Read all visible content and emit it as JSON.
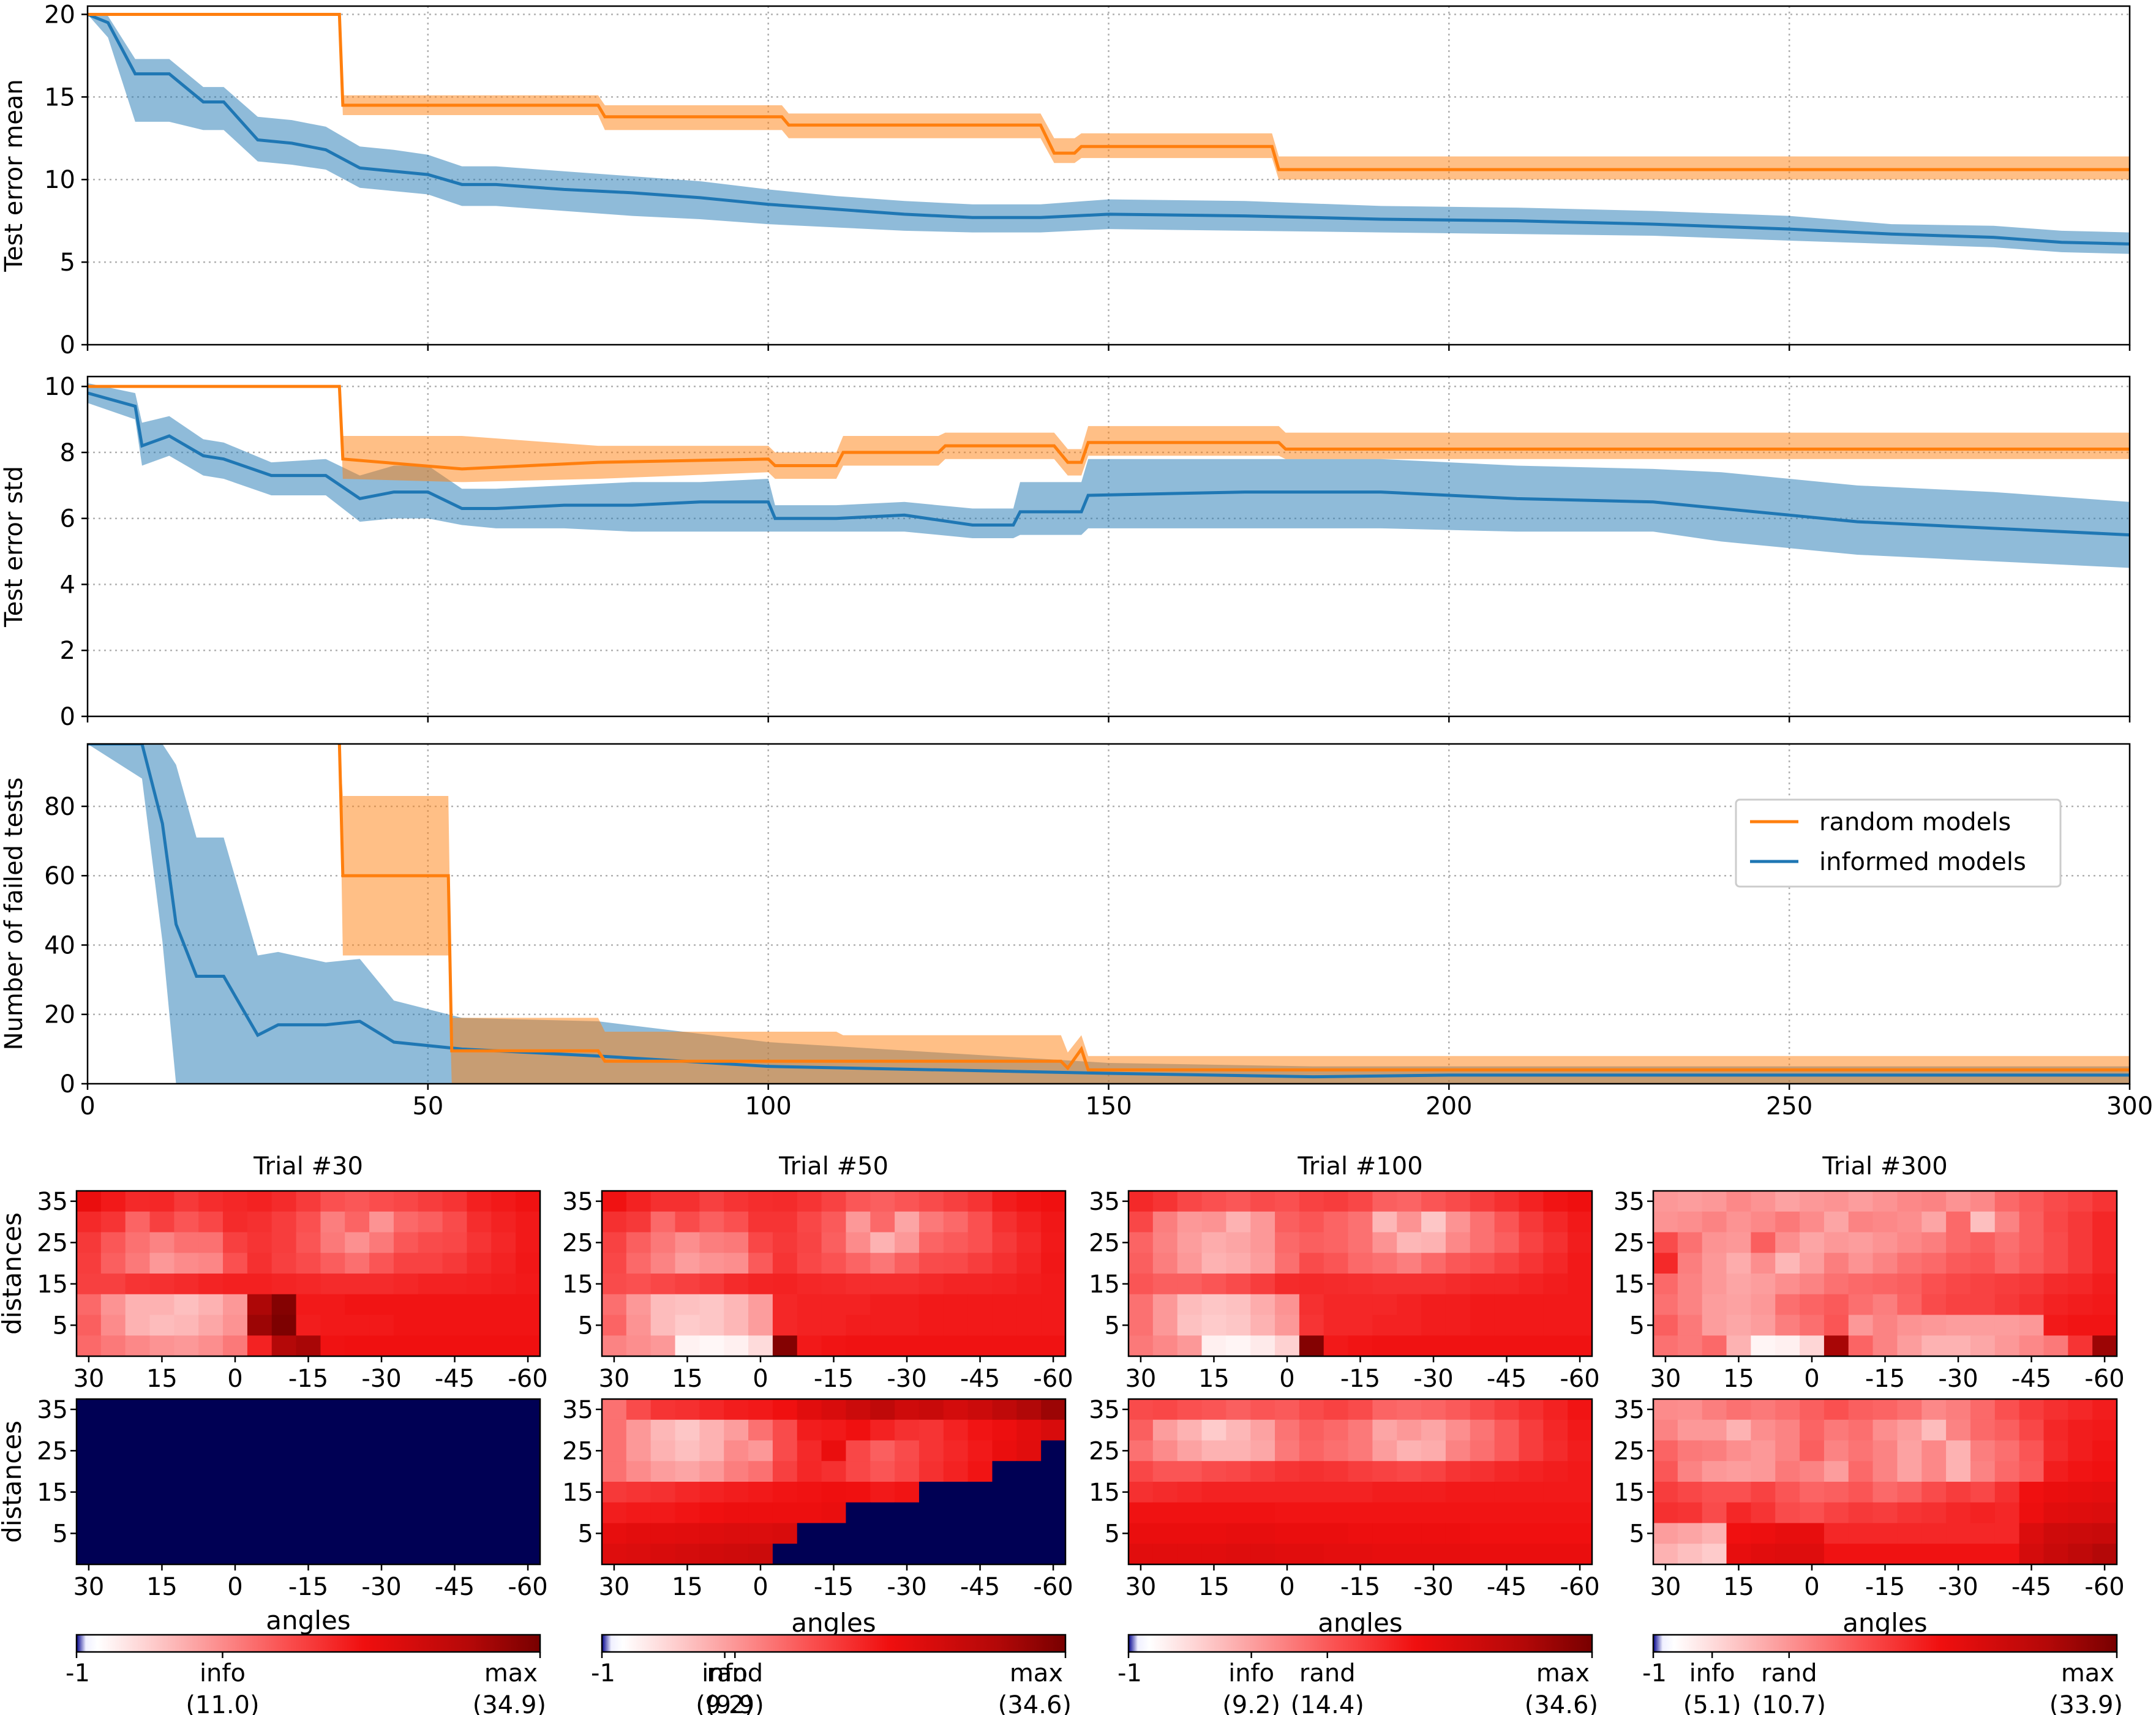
{
  "colors": {
    "random": "#ff7f0e",
    "informed": "#1f77b4",
    "navy": "#000054"
  },
  "chart_data": [
    {
      "type": "line",
      "ylabel": "Test error mean",
      "xlim": [
        0,
        300
      ],
      "ylim": [
        0,
        20.5
      ],
      "yticks": [
        0,
        5,
        10,
        15,
        20
      ],
      "grid": true,
      "series": [
        {
          "name": "random models",
          "color": "#ff7f0e",
          "x": [
            0,
            37,
            37.5,
            75,
            76,
            102,
            103,
            140,
            142,
            145,
            146,
            174,
            175,
            300
          ],
          "y": [
            20,
            20,
            14.5,
            14.5,
            13.8,
            13.8,
            13.3,
            13.3,
            11.6,
            11.6,
            12.0,
            12.0,
            10.6,
            10.6
          ],
          "lo": [
            20,
            20,
            13.9,
            13.9,
            13.0,
            13.0,
            12.5,
            12.5,
            11.0,
            11.0,
            11.3,
            11.3,
            10.0,
            10.0
          ],
          "hi": [
            20,
            20,
            15.1,
            15.1,
            14.5,
            14.5,
            14.0,
            14.0,
            12.5,
            12.5,
            12.8,
            12.8,
            11.4,
            11.4
          ]
        },
        {
          "name": "informed models",
          "color": "#1f77b4",
          "x": [
            0,
            3,
            7,
            12,
            17,
            20,
            25,
            30,
            35,
            40,
            45,
            50,
            55,
            60,
            70,
            80,
            90,
            100,
            110,
            120,
            130,
            140,
            150,
            170,
            190,
            210,
            230,
            250,
            265,
            280,
            290,
            300
          ],
          "y": [
            20,
            19.5,
            16.4,
            16.4,
            14.7,
            14.7,
            12.4,
            12.2,
            11.8,
            10.7,
            10.5,
            10.3,
            9.7,
            9.7,
            9.4,
            9.2,
            8.9,
            8.5,
            8.2,
            7.9,
            7.7,
            7.7,
            7.9,
            7.8,
            7.6,
            7.5,
            7.3,
            7.0,
            6.7,
            6.5,
            6.2,
            6.1
          ],
          "lo": [
            20,
            18.6,
            13.5,
            13.5,
            13.0,
            13.0,
            11.1,
            10.9,
            10.6,
            9.5,
            9.3,
            9.1,
            8.4,
            8.4,
            8.1,
            7.8,
            7.6,
            7.3,
            7.1,
            6.9,
            6.8,
            6.8,
            7.0,
            6.9,
            6.8,
            6.7,
            6.6,
            6.3,
            6.1,
            5.9,
            5.6,
            5.5
          ],
          "hi": [
            20,
            19.9,
            17.3,
            17.3,
            15.6,
            15.6,
            13.8,
            13.6,
            13.2,
            12.0,
            11.8,
            11.5,
            10.8,
            10.8,
            10.5,
            10.2,
            9.9,
            9.4,
            9.0,
            8.7,
            8.5,
            8.5,
            8.8,
            8.7,
            8.4,
            8.3,
            8.1,
            7.8,
            7.3,
            7.2,
            6.9,
            6.8
          ]
        }
      ]
    },
    {
      "type": "line",
      "ylabel": "Test error std",
      "xlim": [
        0,
        300
      ],
      "ylim": [
        0,
        10.3
      ],
      "yticks": [
        0,
        2,
        4,
        6,
        8,
        10
      ],
      "grid": true,
      "series": [
        {
          "name": "random models",
          "color": "#ff7f0e",
          "x": [
            0,
            37,
            37.5,
            55,
            75,
            100,
            101,
            110,
            111,
            125,
            126,
            142,
            144,
            146,
            147,
            175,
            176,
            300
          ],
          "y": [
            10,
            10,
            7.8,
            7.5,
            7.7,
            7.8,
            7.6,
            7.6,
            8.0,
            8.0,
            8.2,
            8.2,
            7.7,
            7.7,
            8.3,
            8.3,
            8.1,
            8.1
          ],
          "lo": [
            10,
            10,
            7.2,
            7.1,
            7.2,
            7.4,
            7.2,
            7.2,
            7.6,
            7.6,
            7.8,
            7.8,
            7.3,
            7.3,
            7.9,
            7.9,
            7.8,
            7.8
          ],
          "hi": [
            10,
            10,
            8.5,
            8.5,
            8.2,
            8.2,
            8.0,
            8.0,
            8.5,
            8.5,
            8.6,
            8.6,
            8.1,
            8.1,
            8.8,
            8.8,
            8.6,
            8.6
          ]
        },
        {
          "name": "informed models",
          "color": "#1f77b4",
          "x": [
            0,
            7,
            8,
            12,
            17,
            20,
            27,
            35,
            40,
            45,
            50,
            55,
            60,
            70,
            80,
            90,
            100,
            101,
            110,
            120,
            130,
            136,
            137,
            146,
            147,
            170,
            190,
            210,
            230,
            240,
            250,
            260,
            280,
            300
          ],
          "y": [
            9.8,
            9.4,
            8.2,
            8.5,
            7.9,
            7.8,
            7.3,
            7.3,
            6.6,
            6.8,
            6.8,
            6.3,
            6.3,
            6.4,
            6.4,
            6.5,
            6.5,
            6.0,
            6.0,
            6.1,
            5.8,
            5.8,
            6.2,
            6.2,
            6.7,
            6.8,
            6.8,
            6.6,
            6.5,
            6.3,
            6.1,
            5.9,
            5.7,
            5.5
          ],
          "lo": [
            9.5,
            9.0,
            7.6,
            7.9,
            7.3,
            7.2,
            6.7,
            6.7,
            5.9,
            6.0,
            6.0,
            5.8,
            5.7,
            5.7,
            5.6,
            5.6,
            5.6,
            5.6,
            5.6,
            5.6,
            5.4,
            5.4,
            5.5,
            5.5,
            5.7,
            5.7,
            5.7,
            5.6,
            5.6,
            5.3,
            5.1,
            4.9,
            4.7,
            4.5
          ],
          "hi": [
            10.1,
            9.8,
            8.9,
            9.1,
            8.4,
            8.3,
            7.7,
            7.8,
            7.3,
            7.6,
            7.6,
            6.9,
            6.9,
            7.0,
            7.1,
            7.1,
            7.2,
            6.4,
            6.4,
            6.5,
            6.3,
            6.3,
            7.1,
            7.1,
            7.8,
            7.8,
            7.8,
            7.6,
            7.5,
            7.4,
            7.2,
            7.0,
            6.8,
            6.5
          ]
        }
      ]
    },
    {
      "type": "line",
      "ylabel": "Number of failed tests",
      "xlabel": "",
      "xlim": [
        0,
        300
      ],
      "ylim": [
        0,
        98
      ],
      "yticks": [
        0,
        20,
        40,
        60,
        80
      ],
      "xticks": [
        0,
        50,
        100,
        150,
        200,
        250,
        300
      ],
      "grid": true,
      "legend": "right",
      "series": [
        {
          "name": "random models",
          "color": "#ff7f0e",
          "x": [
            37,
            37.5,
            53,
            53.5,
            75,
            76,
            110,
            111,
            143,
            144,
            146,
            147,
            300
          ],
          "y": [
            98,
            60,
            60,
            9.5,
            9.5,
            6.5,
            6.5,
            6.5,
            6.5,
            4.5,
            10,
            4,
            4
          ],
          "lo": [
            98,
            37,
            37,
            0,
            0,
            0,
            0,
            0,
            0,
            0,
            0,
            0,
            0
          ],
          "hi": [
            98,
            83,
            83,
            19,
            19,
            15,
            15,
            14,
            14,
            9,
            14,
            8,
            8
          ]
        },
        {
          "name": "informed models",
          "color": "#1f77b4",
          "x": [
            0,
            8,
            11,
            13,
            16,
            20,
            25,
            28,
            35,
            40,
            45,
            55,
            75,
            100,
            150,
            180,
            200,
            300
          ],
          "y": [
            98,
            98,
            75,
            46,
            31,
            31,
            14,
            17,
            17,
            18,
            12,
            10,
            8,
            5,
            3,
            2,
            2.5,
            2.5
          ],
          "lo": [
            98,
            88,
            41,
            0,
            0,
            0,
            0,
            0,
            0,
            0,
            0,
            0,
            0,
            0,
            0,
            0,
            0,
            0
          ],
          "hi": [
            98,
            98,
            98,
            92,
            71,
            71,
            37,
            38,
            35,
            36,
            24,
            19,
            18,
            12,
            6,
            5,
            5,
            5
          ]
        }
      ]
    },
    {
      "type": "heatmap",
      "panels": [
        {
          "title": "Trial #30",
          "top": "1.0,0.92,0.85,0.86,0.78,0.83,0.86,0.88,0.84,0.77,0.68,0.65,0.69,0.72,0.76,0.80,0.89,0.92,0.95;0.85,0.80,0.60,0.75,0.66,0.72,0.84,0.82,0.76,0.68,0.50,0.60,0.42,0.58,0.62,0.70,0.83,0.88,0.92;0.78,0.65,0.55,0.48,0.55,0.55,0.75,0.80,0.76,0.66,0.52,0.43,0.52,0.65,0.70,0.72,0.80,0.86,0.92;0.76,0.62,0.52,0.40,0.45,0.47,0.68,0.82,0.75,0.70,0.63,0.56,0.66,0.74,0.74,0.78,0.84,0.88,0.93;0.75,0.75,0.80,0.82,0.84,0.87,0.89,0.89,0.87,0.86,0.84,0.84,0.84,0.86,0.88,0.88,0.89,0.90,0.92;0.58,0.42,0.30,0.30,0.25,0.30,0.40,1.38,1.55,0.92,0.92,0.94,0.94,0.94,0.94,0.94,0.94,0.94,0.94;0.62,0.45,0.30,0.26,0.28,0.34,0.42,1.45,1.58,0.90,0.92,0.92,0.92,0.94,0.94,0.94,0.94,0.94,0.94;0.58,0.52,0.46,0.42,0.40,0.44,0.52,0.88,1.35,1.40,0.95,0.96,0.96,0.96,0.96,0.96,0.96,0.96,0.96",
          "bottom": "navy",
          "cbar": {
            "min": "-1",
            "labels": [
              "info",
              "max"
            ],
            "values": [
              "(11.0)",
              "(34.9)"
            ],
            "positions": [
              0.315,
              1.0
            ]
          }
        },
        {
          "title": "Trial #50",
          "top": "0.95,0.88,0.82,0.82,0.75,0.80,0.83,0.84,0.80,0.74,0.65,0.62,0.66,0.70,0.75,0.80,0.90,0.94,0.96;0.82,0.78,0.58,0.70,0.62,0.68,0.80,0.80,0.72,0.64,0.40,0.58,0.35,0.52,0.58,0.68,0.82,0.88,0.93;0.74,0.62,0.52,0.44,0.50,0.52,0.72,0.78,0.73,0.62,0.45,0.30,0.40,0.60,0.64,0.68,0.78,0.85,0.92;0.72,0.58,0.48,0.38,0.42,0.44,0.64,0.80,0.72,0.67,0.60,0.53,0.62,0.70,0.71,0.76,0.82,0.87,0.93;0.70,0.68,0.72,0.75,0.78,0.84,0.87,0.88,0.86,0.85,0.83,0.83,0.83,0.85,0.87,0.87,0.88,0.90,0.92;0.56,0.40,0.26,0.24,0.22,0.28,0.38,0.86,0.88,0.88,0.88,0.90,0.90,0.92,0.92,0.92,0.92,0.92,0.92;0.60,0.42,0.26,0.20,0.22,0.28,0.38,0.86,0.88,0.88,0.90,0.90,0.90,0.92,0.92,0.92,0.92,0.92,0.92;0.48,0.44,0.40,0.05,0.03,0.06,0.14,1.55,0.92,0.94,0.95,0.95,0.95,0.95,0.95,0.95,0.95,0.95,0.95",
          "bottom": "0.55,0.70,0.80,0.82,0.86,0.90,0.92,0.96,1.06,1.12,1.20,1.28,1.18,1.22,1.15,1.20,1.28,1.36,1.45;0.55,0.40,0.28,0.22,0.30,0.38,0.55,0.70,0.90,0.92,0.96,0.88,0.82,0.80,0.88,0.94,0.98,1.05,1.12;0.55,0.40,0.30,0.25,0.30,0.45,0.40,0.70,0.85,1.00,0.72,0.62,0.70,0.80,0.86,0.92,1.00,1.06,N;0.55,0.45,0.38,0.35,0.40,0.50,0.55,0.75,0.86,0.82,0.72,0.66,0.72,0.82,0.88,0.94,N,N,N;0.78,0.80,0.82,0.86,0.88,0.90,0.92,0.94,0.95,0.97,0.96,0.92,0.94,N,N,N,N,N,N;0.90,0.92,0.92,0.94,0.96,0.98,0.98,0.98,0.98,1.00,N,N,N,N,N,N,N,N,N;1.02,1.05,1.05,1.06,1.08,1.10,1.10,1.12,N,N,N,N,N,N,N,N,N,N,N;1.08,1.10,1.12,1.14,1.16,1.18,1.20,N,N,N,N,N,N,N,N,N,N,N,N",
          "cbar": {
            "min": "-1",
            "labels": [
              "info",
              "rand",
              "max"
            ],
            "values": [
              "(9.2)",
              "(9.9)",
              "(34.6)"
            ],
            "positions": [
              0.265,
              0.287,
              1.0
            ]
          }
        },
        {
          "title": "Trial #100",
          "top": "0.85,0.80,0.72,0.68,0.65,0.70,0.68,0.74,0.76,0.72,0.62,0.60,0.66,0.70,0.76,0.82,0.88,0.94,0.97;0.72,0.50,0.40,0.42,0.30,0.40,0.62,0.66,0.60,0.55,0.28,0.42,0.22,0.42,0.55,0.66,0.78,0.86,0.92;0.60,0.48,0.38,0.32,0.35,0.40,0.58,0.62,0.60,0.55,0.42,0.28,0.30,0.46,0.55,0.62,0.74,0.82,0.90;0.62,0.50,0.40,0.30,0.32,0.38,0.56,0.70,0.66,0.58,0.55,0.50,0.58,0.65,0.68,0.74,0.80,0.86,0.92;0.66,0.62,0.62,0.66,0.70,0.76,0.84,0.85,0.84,0.83,0.82,0.82,0.82,0.84,0.86,0.86,0.88,0.90,0.92;0.55,0.40,0.26,0.22,0.24,0.32,0.42,0.82,0.86,0.86,0.86,0.88,0.90,0.90,0.92,0.92,0.92,0.92,0.92;0.55,0.40,0.24,0.20,0.22,0.30,0.40,0.80,0.86,0.86,0.88,0.88,0.90,0.90,0.92,0.92,0.92,0.92,0.92;0.52,0.46,0.40,0.06,0.04,0.08,0.18,1.55,0.92,0.94,0.95,0.95,0.95,0.95,0.95,0.95,0.95,0.95,0.95",
          "bottom": "0.70,0.72,0.68,0.66,0.62,0.66,0.64,0.70,0.74,0.70,0.60,0.58,0.60,0.64,0.70,0.76,0.82,0.88,0.94;0.62,0.38,0.30,0.20,0.28,0.36,0.54,0.62,0.58,0.52,0.35,0.40,0.35,0.44,0.54,0.64,0.76,0.86,0.92;0.55,0.45,0.36,0.30,0.30,0.34,0.52,0.60,0.56,0.52,0.38,0.30,0.32,0.48,0.56,0.64,0.76,0.84,0.90;0.72,0.66,0.66,0.70,0.72,0.76,0.80,0.82,0.80,0.76,0.74,0.72,0.74,0.80,0.82,0.86,0.88,0.90,0.92;0.82,0.84,0.86,0.88,0.88,0.88,0.88,0.88,0.88,0.88,0.90,0.90,0.90,0.92,0.92,0.92,0.92,0.92,0.92;0.95,0.95,0.95,0.95,0.95,0.95,0.94,0.94,0.94,0.94,0.94,0.94,0.94,0.94,0.94,0.94,0.94,0.94,0.94;1.00,1.00,1.00,1.00,1.02,1.02,1.00,1.00,1.00,0.98,0.98,0.98,0.98,0.98,0.96,0.96,0.96,0.96,0.96;1.06,1.06,1.06,1.06,1.08,1.08,1.06,1.06,1.04,1.04,1.02,1.02,1.02,1.02,1.00,1.00,1.00,1.00,1.00",
          "cbar": {
            "min": "-1",
            "labels": [
              "info",
              "rand",
              "max"
            ],
            "values": [
              "(9.2)",
              "(14.4)",
              "(34.6)"
            ],
            "positions": [
              0.265,
              0.429,
              1.0
            ]
          }
        },
        {
          "title": "Trial #300",
          "top": "0.40,0.38,0.40,0.46,0.42,0.36,0.40,0.42,0.38,0.42,0.46,0.48,0.42,0.46,0.58,0.64,0.70,0.74,0.80;0.42,0.44,0.48,0.42,0.46,0.52,0.45,0.35,0.48,0.46,0.44,0.35,0.58,0.25,0.48,0.62,0.72,0.78,0.86;0.70,0.55,0.42,0.40,0.62,0.44,0.35,0.40,0.38,0.42,0.46,0.50,0.58,0.62,0.56,0.62,0.70,0.78,0.86;0.85,0.50,0.40,0.32,0.44,0.28,0.38,0.50,0.42,0.48,0.55,0.58,0.64,0.66,0.58,0.64,0.70,0.78,0.86;0.58,0.48,0.40,0.35,0.38,0.44,0.48,0.55,0.58,0.60,0.62,0.68,0.72,0.74,0.76,0.78,0.84,0.86,0.90;0.55,0.48,0.38,0.36,0.40,0.56,0.60,0.64,0.56,0.50,0.60,0.70,0.74,0.74,0.78,0.82,0.88,0.90,0.92;0.62,0.52,0.38,0.34,0.38,0.50,0.56,0.66,0.40,0.48,0.42,0.40,0.38,0.38,0.38,0.40,0.92,0.94,0.94;0.55,0.52,0.58,0.30,0.04,0.06,0.16,1.40,0.60,0.48,0.38,0.30,0.30,0.34,0.40,0.46,0.52,0.80,1.45",
          "bottom": "0.45,0.44,0.50,0.55,0.52,0.56,0.62,0.68,0.62,0.60,0.56,0.46,0.50,0.58,0.68,0.76,0.82,0.86,0.90;0.48,0.40,0.40,0.30,0.44,0.48,0.60,0.52,0.56,0.44,0.38,0.26,0.48,0.58,0.62,0.72,0.86,0.90,0.92;0.60,0.52,0.50,0.44,0.40,0.48,0.62,0.48,0.54,0.48,0.36,0.46,0.30,0.50,0.56,0.66,0.84,0.90,0.94;0.65,0.48,0.40,0.38,0.40,0.52,0.48,0.38,0.58,0.48,0.36,0.46,0.30,0.48,0.58,0.64,0.90,0.94,0.96;0.76,0.72,0.68,0.68,0.74,0.66,0.60,0.62,0.66,0.58,0.62,0.70,0.76,0.72,0.82,0.96,1.00,1.02,1.04;0.82,0.80,0.70,0.86,0.80,0.70,0.68,0.74,0.78,0.76,0.80,0.82,0.86,0.88,0.86,0.98,1.06,1.08,1.10;0.38,0.35,0.30,0.96,0.98,1.02,1.02,0.86,0.86,0.86,0.86,0.86,0.86,0.86,0.86,1.10,1.18,1.20,1.22;0.30,0.25,0.20,1.02,1.06,1.08,1.08,0.95,0.95,0.95,0.95,0.95,0.95,0.95,0.95,1.14,1.22,1.28,1.35",
          "cbar": {
            "min": "-1",
            "labels": [
              "info",
              "rand",
              "max"
            ],
            "values": [
              "(5.1)",
              "(10.7)",
              "(33.9)"
            ],
            "positions": [
              0.127,
              0.293,
              1.0
            ]
          }
        }
      ],
      "ylabel": "distances",
      "xlabel": "angles",
      "yticks": [
        "35",
        "25",
        "15",
        "5"
      ],
      "xticks": [
        "30",
        "15",
        "0",
        "-15",
        "-30",
        "-45",
        "-60"
      ]
    }
  ],
  "legend": {
    "items": [
      "random models",
      "informed models"
    ]
  }
}
